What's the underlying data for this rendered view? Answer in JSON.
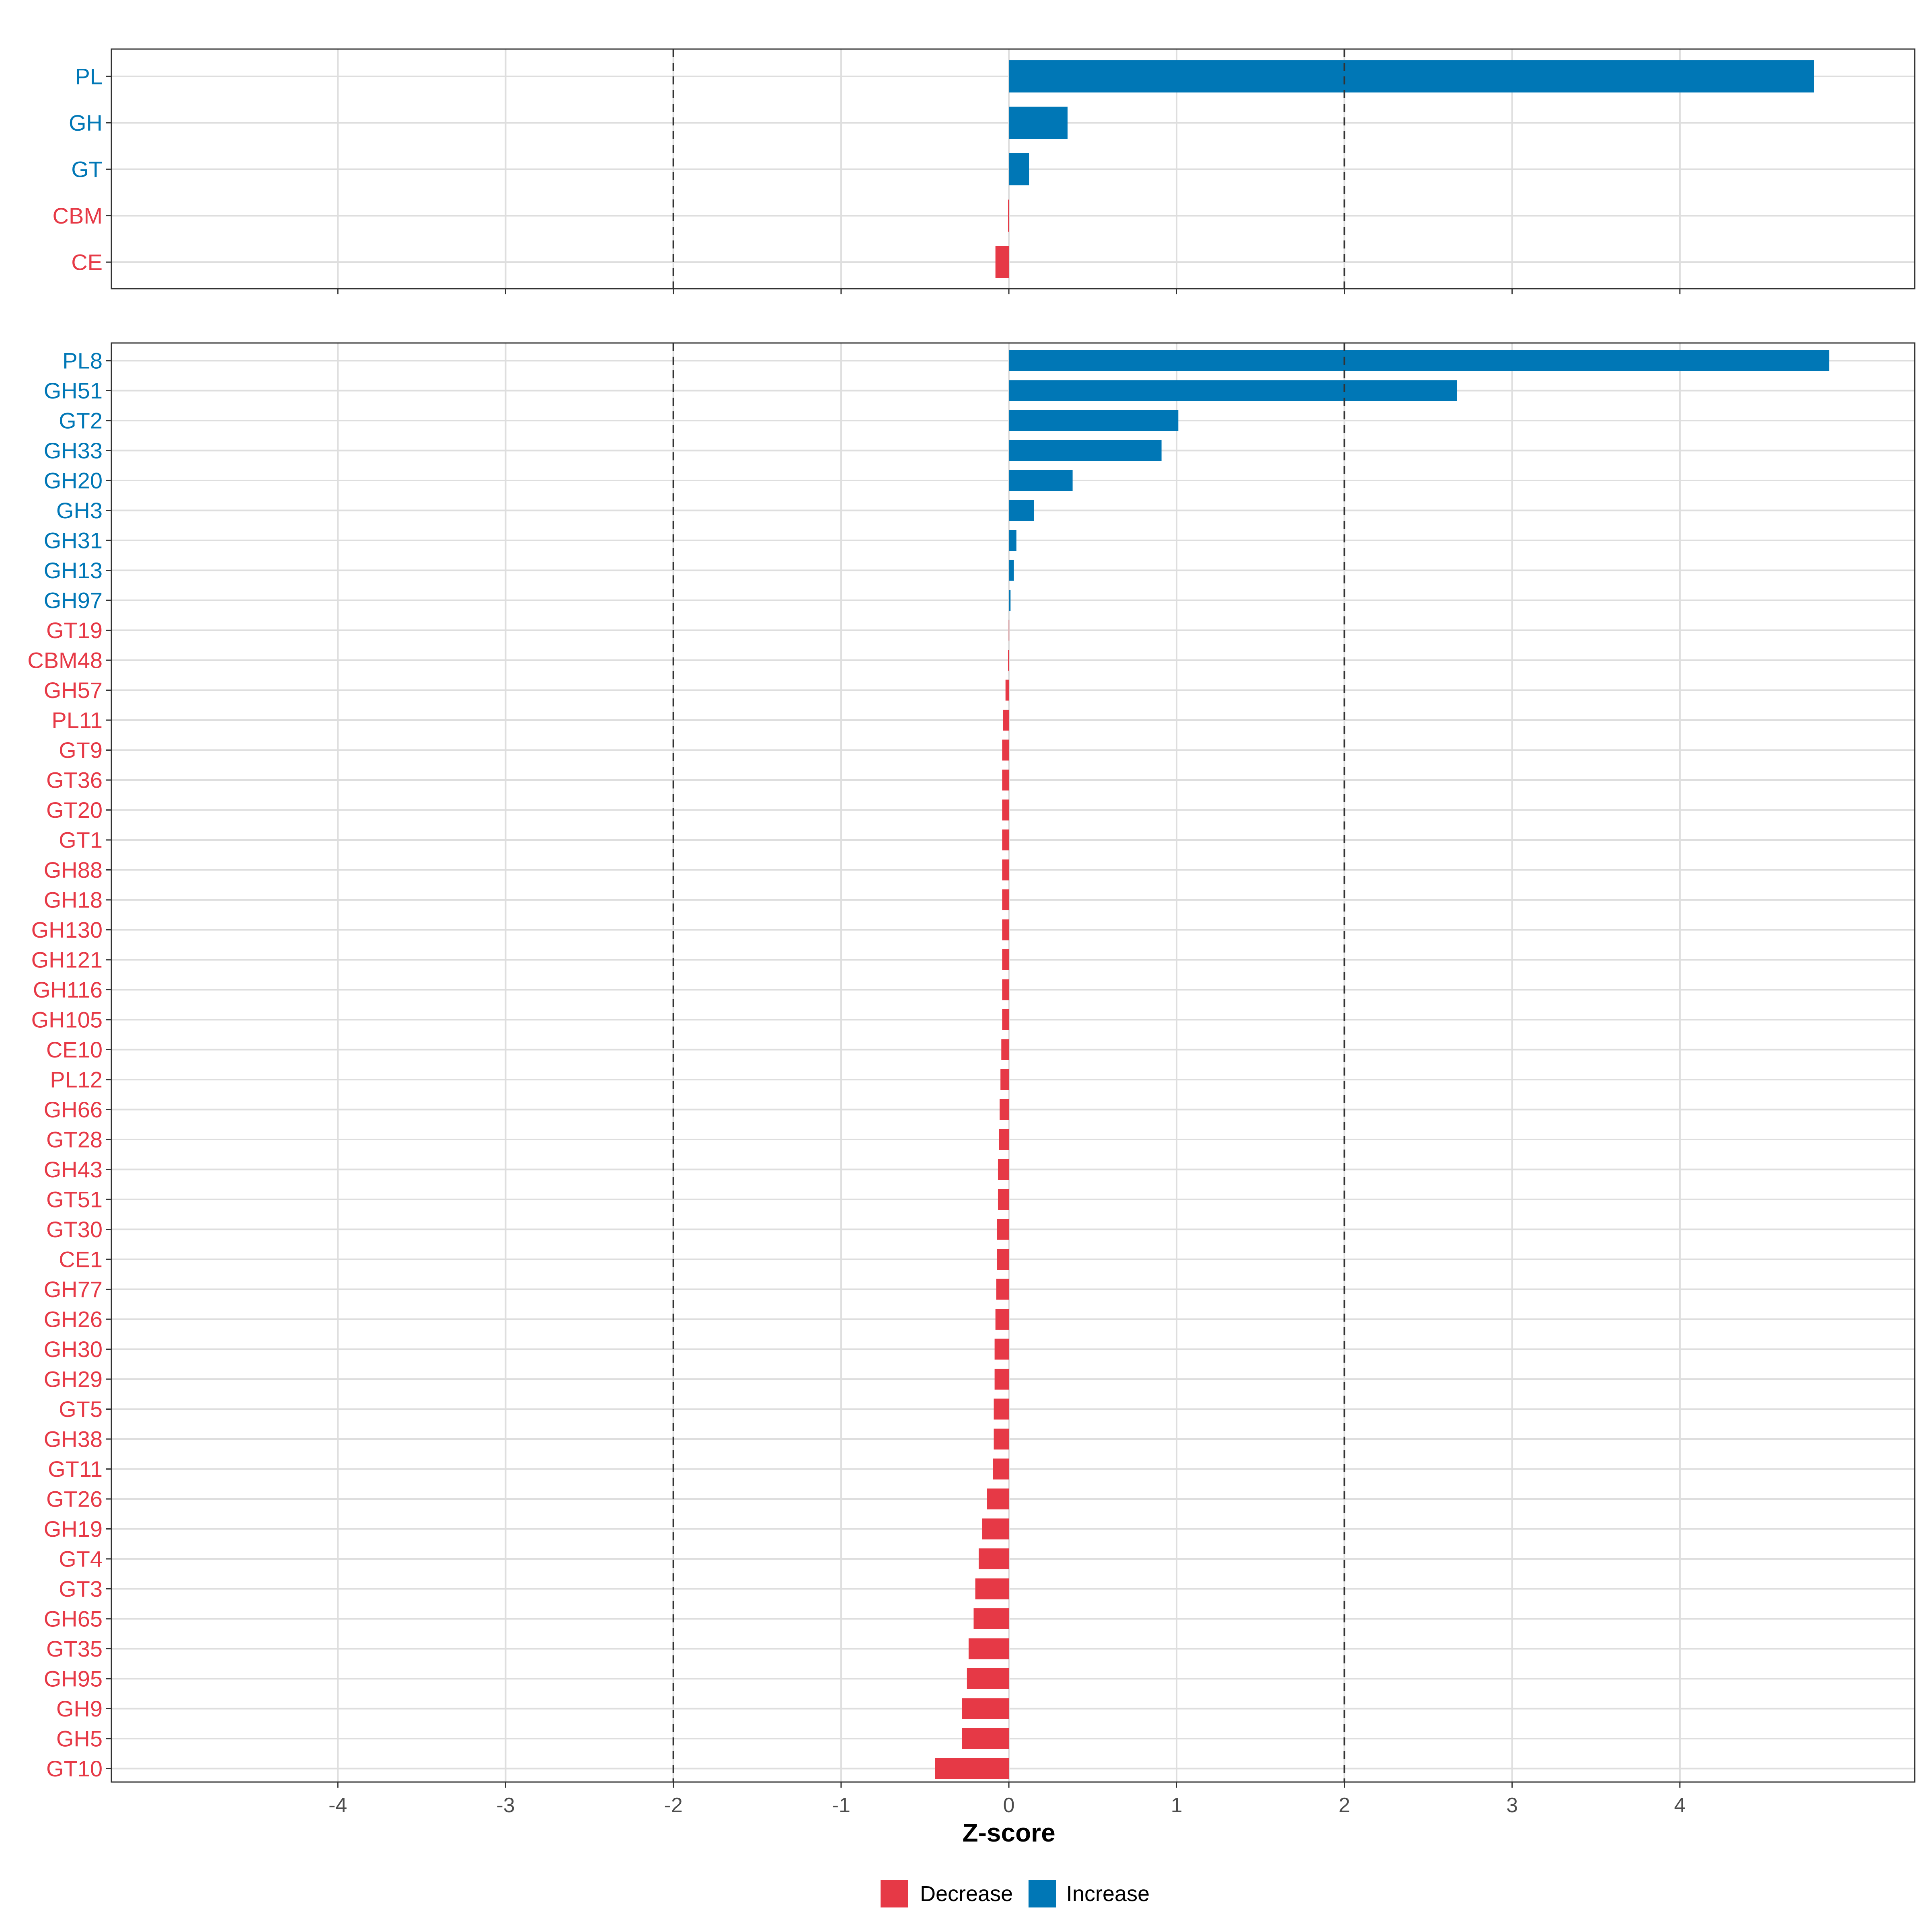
{
  "chart_data": {
    "type": "bar",
    "orientation": "horizontal",
    "xlabel": "Z-score",
    "x_ticks": [
      -4,
      -3,
      -2,
      -1,
      0,
      1,
      2,
      3,
      4
    ],
    "xlim": [
      -5.35,
      5.4
    ],
    "reference_lines": [
      -2,
      2
    ],
    "grid": true,
    "colors": {
      "Decrease": "#e63946",
      "Increase": "#0077b6"
    },
    "legend": {
      "position": "bottom",
      "entries": [
        {
          "label": "Decrease",
          "color": "#e63946"
        },
        {
          "label": "Increase",
          "color": "#0077b6"
        }
      ]
    },
    "panels": [
      {
        "categories": [
          "PL",
          "GH",
          "GT",
          "CBM",
          "CE"
        ],
        "values": [
          4.8,
          0.35,
          0.12,
          -0.005,
          -0.08
        ]
      },
      {
        "categories": [
          "PL8",
          "GH51",
          "GT2",
          "GH33",
          "GH20",
          "GH3",
          "GH31",
          "GH13",
          "GH97",
          "GT19",
          "CBM48",
          "GH57",
          "PL11",
          "GT9",
          "GT36",
          "GT20",
          "GT1",
          "GH88",
          "GH18",
          "GH130",
          "GH121",
          "GH116",
          "GH105",
          "CE10",
          "PL12",
          "GH66",
          "GT28",
          "GH43",
          "GT51",
          "GT30",
          "CE1",
          "GH77",
          "GH26",
          "GH30",
          "GH29",
          "GT5",
          "GH38",
          "GT11",
          "GT26",
          "GH19",
          "GT4",
          "GT3",
          "GH65",
          "GT35",
          "GH95",
          "GH9",
          "GH5",
          "GT10"
        ],
        "values": [
          4.89,
          2.67,
          1.01,
          0.91,
          0.38,
          0.15,
          0.045,
          0.03,
          0.01,
          -0.001,
          -0.005,
          -0.02,
          -0.035,
          -0.04,
          -0.04,
          -0.04,
          -0.04,
          -0.04,
          -0.04,
          -0.04,
          -0.04,
          -0.04,
          -0.04,
          -0.045,
          -0.05,
          -0.055,
          -0.06,
          -0.065,
          -0.065,
          -0.07,
          -0.07,
          -0.075,
          -0.08,
          -0.085,
          -0.085,
          -0.09,
          -0.09,
          -0.095,
          -0.13,
          -0.16,
          -0.18,
          -0.2,
          -0.21,
          -0.24,
          -0.25,
          -0.28,
          -0.28,
          -0.44
        ]
      }
    ]
  }
}
